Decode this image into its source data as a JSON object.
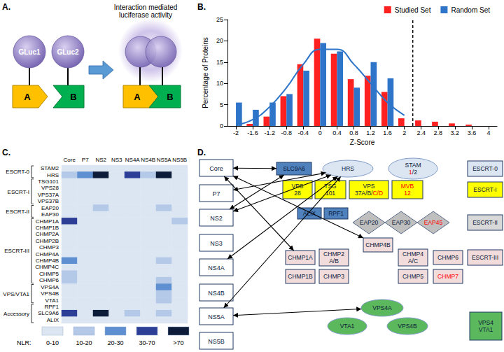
{
  "panel_a": {
    "panel_label": "A.",
    "title": "Interaction mediated luciferase activity",
    "luciferase": [
      "GLuc1",
      "GLuc2"
    ],
    "proteins": [
      "A",
      "B"
    ]
  },
  "chart_data": [
    {
      "type": "bar",
      "panel_label": "B.",
      "x_label": "Z-Score",
      "y_label": "Percentage of Proteins",
      "categories": [
        "-2",
        "-1.6",
        "-1.2",
        "-0.8",
        "-0.4",
        "0",
        "0.4",
        "0.8",
        "1.2",
        "1.6",
        "2",
        "2.4",
        "2.8",
        "3.2",
        "3.6",
        "4"
      ],
      "series": [
        {
          "name": "Studied Set",
          "color": "#ff2020",
          "values": [
            0,
            0.5,
            2.2,
            7,
            14.5,
            20.5,
            17,
            11,
            11.8,
            8,
            1.8,
            1.3,
            1,
            0.6,
            0.3,
            0
          ]
        },
        {
          "name": "Random Set",
          "color": "#2e75c9",
          "values": [
            5.5,
            3.8,
            5.5,
            7.5,
            13,
            19.5,
            17.5,
            9,
            15,
            11.2,
            0,
            0,
            0,
            0,
            0,
            0
          ]
        },
        {
          "type": "line",
          "color": "#2e75c9",
          "line_style": "solid",
          "values": [
            0.3,
            1.5,
            4.5,
            9,
            14.5,
            18,
            18,
            14.5,
            10,
            5.5,
            2.5,
            null,
            null,
            null,
            null,
            null
          ]
        }
      ],
      "threshold": 2.2,
      "ylim": [
        0,
        25
      ],
      "yticks": [
        0,
        5,
        10,
        15,
        20,
        25
      ],
      "legend": "top-right",
      "grid": false
    },
    {
      "type": "heatmap",
      "panel_label": "C.",
      "x": [
        "Core",
        "P7",
        "NS2",
        "NS3",
        "NS4A",
        "NS4B",
        "NS5A",
        "NS5B"
      ],
      "y": [
        "STAM2",
        "HRS",
        "TSG101",
        "VPS28",
        "VPS37A",
        "VPS37B",
        "EAP20",
        "EAP30",
        "CHMP1A",
        "CHMP1B",
        "CHMP2A",
        "CHMP2B",
        "CHMP3",
        "CHMP4A",
        "CHMP4B",
        "CHMP4C",
        "CHMP5",
        "CHMP6",
        "VPS4A",
        "VPS4B",
        "VTA1",
        "RPF1",
        "SLC9A6",
        "ALIX"
      ],
      "groups": [
        {
          "label": "ESCRT-0",
          "rows": [
            "STAM2",
            "HRS"
          ]
        },
        {
          "label": "ESCRT-I",
          "rows": [
            "TSG101",
            "VPS28",
            "VPS37A",
            "VPS37B"
          ]
        },
        {
          "label": "ESCRT-II",
          "rows": [
            "EAP20",
            "EAP30"
          ]
        },
        {
          "label": "ESCRT-III",
          "rows": [
            "CHMP1A",
            "CHMP1B",
            "CHMP2A",
            "CHMP2B",
            "CHMP3",
            "CHMP4A",
            "CHMP4B",
            "CHMP4C",
            "CHMP5",
            "CHMP6"
          ]
        },
        {
          "label": "VPS/VTA1",
          "rows": [
            "VPS4A",
            "VPS4B",
            "VTA1"
          ]
        },
        {
          "label": "Accessory",
          "rows": [
            "RPF1",
            "SLC9A6",
            "ALIX"
          ]
        }
      ],
      "cells": [
        [
          0,
          0,
          0,
          0,
          0,
          0,
          0,
          0
        ],
        [
          1,
          2,
          4,
          0,
          3,
          1,
          4,
          0
        ],
        [
          0,
          0,
          0,
          0,
          0,
          0,
          0,
          0
        ],
        [
          0,
          0,
          0,
          0,
          0,
          0,
          0,
          0
        ],
        [
          0,
          0,
          0,
          0,
          0,
          0,
          0,
          0
        ],
        [
          0,
          0,
          0,
          0,
          0,
          0,
          0,
          0
        ],
        [
          0,
          0,
          1,
          0,
          0,
          0,
          1,
          0
        ],
        [
          0,
          0,
          0,
          0,
          0,
          0,
          0,
          0
        ],
        [
          3,
          0,
          0,
          0,
          0,
          0,
          0,
          1
        ],
        [
          0,
          0,
          0,
          0,
          0,
          0,
          0,
          0
        ],
        [
          0,
          0,
          0,
          0,
          0,
          0,
          0,
          0
        ],
        [
          0,
          0,
          0,
          0,
          0,
          0,
          0,
          0
        ],
        [
          0,
          0,
          0,
          0,
          0,
          0,
          0,
          0
        ],
        [
          0,
          0,
          0,
          0,
          0,
          0,
          0,
          0
        ],
        [
          2,
          0,
          0,
          0,
          0,
          0,
          1,
          0
        ],
        [
          0,
          0,
          0,
          0,
          0,
          0,
          0,
          0
        ],
        [
          1,
          0,
          0,
          0,
          0,
          0,
          0,
          0
        ],
        [
          1,
          0,
          0,
          0,
          0,
          0,
          1,
          0
        ],
        [
          0,
          0,
          0,
          0,
          0,
          0,
          2,
          0
        ],
        [
          0,
          0,
          0,
          0,
          0,
          0,
          1,
          0
        ],
        [
          0,
          0,
          0,
          0,
          0,
          0,
          1,
          0
        ],
        [
          0,
          0,
          0,
          0,
          0,
          0,
          0,
          0
        ],
        [
          3,
          0,
          4,
          0,
          1,
          0,
          1,
          0
        ],
        [
          0,
          0,
          0,
          0,
          0,
          0,
          0,
          0
        ]
      ],
      "color_bar_title": "NLR:",
      "color_bins": [
        {
          "value": 0,
          "label": "0-10",
          "color": "#dce6f2"
        },
        {
          "value": 1,
          "label": "10-20",
          "color": "#b4c9e8"
        },
        {
          "value": 2,
          "label": "20-30",
          "color": "#5e8fd0"
        },
        {
          "value": 3,
          "label": "30-70",
          "color": "#2d3e96"
        },
        {
          "value": 4,
          "label": ">70",
          "color": "#0d1c38"
        }
      ]
    }
  ],
  "panel_d": {
    "panel_label": "D.",
    "sources": [
      "Core",
      "P7",
      "NS2",
      "NS3",
      "NS4A",
      "NS4B",
      "NS5A",
      "NS5B"
    ],
    "nodes": [
      {
        "label": [
          [
            {
              "text": "SLC9A6"
            }
          ]
        ],
        "shape": "rect",
        "color": "#4f81bd"
      },
      {
        "label": [
          [
            {
              "text": "HRS"
            }
          ]
        ],
        "shape": "ellipse",
        "color": "#dce6f2"
      },
      {
        "label": [
          [
            {
              "text": "STAM"
            }
          ],
          [
            {
              "text": "1",
              "red": true
            },
            {
              "text": "/2"
            }
          ]
        ],
        "shape": "ellipse",
        "color": "#dce6f2"
      },
      {
        "label": [
          [
            {
              "text": "ESCRT-0"
            }
          ]
        ],
        "shape": "rect",
        "color": "#dce6f2"
      },
      {
        "label": [
          [
            {
              "text": "VPS"
            }
          ],
          [
            {
              "text": "28"
            }
          ]
        ],
        "shape": "rect",
        "color": "#ffff00"
      },
      {
        "label": [
          [
            {
              "text": "TSG"
            }
          ],
          [
            {
              "text": "101"
            }
          ]
        ],
        "shape": "rect",
        "color": "#ffff00"
      },
      {
        "label": [
          [
            {
              "text": "VPS"
            }
          ],
          [
            {
              "text": "37A/B/"
            },
            {
              "text": "C/D",
              "red": true
            }
          ]
        ],
        "shape": "rect",
        "color": "#ffff00"
      },
      {
        "label": [
          [
            {
              "text": "MVB",
              "red": true
            }
          ],
          [
            {
              "text": "12",
              "red": true
            }
          ]
        ],
        "shape": "rect",
        "color": "#ffff00"
      },
      {
        "label": [
          [
            {
              "text": "ESCRT-I"
            }
          ]
        ],
        "shape": "rect",
        "color": "#ffff00"
      },
      {
        "label": [
          [
            {
              "text": "ALIX"
            }
          ]
        ],
        "shape": "rect",
        "color": "#4f81bd"
      },
      {
        "label": [
          [
            {
              "text": "RPF1"
            }
          ]
        ],
        "shape": "rect",
        "color": "#4f81bd"
      },
      {
        "label": [
          [
            {
              "text": "EAP20"
            }
          ]
        ],
        "shape": "diamond",
        "color": "#bfbfbf"
      },
      {
        "label": [
          [
            {
              "text": "EAP30"
            }
          ]
        ],
        "shape": "diamond",
        "color": "#bfbfbf"
      },
      {
        "label": [
          [
            {
              "text": "EAP45",
              "red": true
            }
          ]
        ],
        "shape": "diamond",
        "color": "#bfbfbf"
      },
      {
        "label": [
          [
            {
              "text": "ESCRT-II"
            }
          ]
        ],
        "shape": "rect",
        "color": "#d9d9d9"
      },
      {
        "label": [
          [
            {
              "text": "CHMP1A"
            }
          ]
        ],
        "shape": "rect",
        "color": "#f2dcdb"
      },
      {
        "label": [
          [
            {
              "text": "CHMP1B"
            }
          ]
        ],
        "shape": "rect",
        "color": "#f2dcdb"
      },
      {
        "label": [
          [
            {
              "text": "CHMP2"
            }
          ],
          [
            {
              "text": "A/B"
            }
          ]
        ],
        "shape": "rect",
        "color": "#f2dcdb"
      },
      {
        "label": [
          [
            {
              "text": "CHMP3"
            }
          ]
        ],
        "shape": "rect",
        "color": "#f2dcdb"
      },
      {
        "label": [
          [
            {
              "text": "CHMP4B"
            }
          ]
        ],
        "shape": "rect",
        "color": "#f2dcdb"
      },
      {
        "label": [
          [
            {
              "text": "CHMP4"
            }
          ],
          [
            {
              "text": "A/C"
            }
          ]
        ],
        "shape": "rect",
        "color": "#f2dcdb"
      },
      {
        "label": [
          [
            {
              "text": "CHMP5"
            }
          ]
        ],
        "shape": "rect",
        "color": "#f2dcdb"
      },
      {
        "label": [
          [
            {
              "text": "CHMP6"
            }
          ]
        ],
        "shape": "rect",
        "color": "#f2dcdb"
      },
      {
        "label": [
          [
            {
              "text": "CHMP7",
              "red": true
            }
          ]
        ],
        "shape": "rect",
        "color": "#f2dcdb"
      },
      {
        "label": [
          [
            {
              "text": "ESCRT-III"
            }
          ]
        ],
        "shape": "rect",
        "color": "#f2dcdb"
      },
      {
        "label": [
          [
            {
              "text": "VPS4A"
            }
          ]
        ],
        "shape": "ellipse",
        "color": "#5cb85c"
      },
      {
        "label": [
          [
            {
              "text": "VTA1"
            }
          ]
        ],
        "shape": "ellipse",
        "color": "#5cb85c"
      },
      {
        "label": [
          [
            {
              "text": "VPS4B"
            }
          ]
        ],
        "shape": "ellipse",
        "color": "#5cb85c"
      },
      {
        "label": [
          [
            {
              "text": "VPS4"
            }
          ],
          [
            {
              "text": "VTA1"
            }
          ]
        ],
        "shape": "rect",
        "color": "#5cb85c"
      }
    ],
    "edges": [
      [
        "Core",
        "SLC9A6"
      ],
      [
        "Core",
        "CHMP1A"
      ],
      [
        "Core",
        "CHMP4B"
      ],
      [
        "P7",
        "HRS"
      ],
      [
        "NS2",
        "HRS"
      ],
      [
        "NS2",
        "SLC9A6"
      ],
      [
        "NS4A",
        "HRS"
      ],
      [
        "NS5A",
        "HRS"
      ],
      [
        "NS5A",
        "VPS4A"
      ]
    ]
  }
}
